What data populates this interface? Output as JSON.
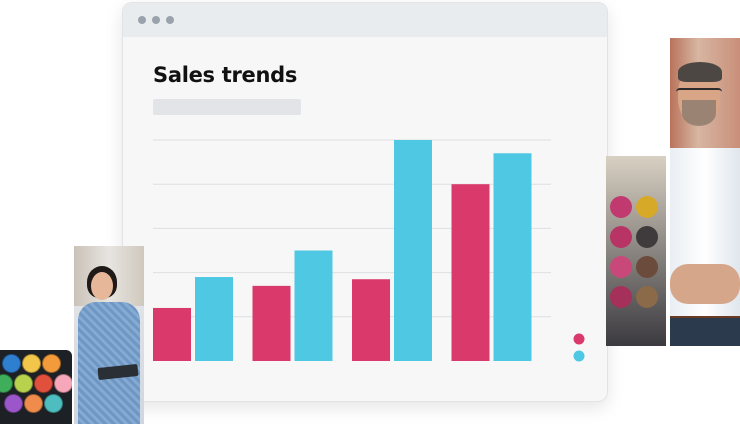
{
  "window": {
    "title_dots": [
      "close",
      "minimize",
      "maximize"
    ]
  },
  "chart_data": {
    "type": "bar",
    "title": "Sales trends",
    "subtitle": "",
    "categories": [
      "",
      "",
      "",
      ""
    ],
    "series": [
      {
        "values": [
          12,
          17,
          18.5,
          40
        ],
        "color": "#d93a6b"
      },
      {
        "values": [
          19,
          25,
          50,
          47
        ],
        "color": "#4ec8e3"
      }
    ],
    "ylim": [
      0,
      50
    ],
    "y_gridlines": [
      10,
      20,
      30,
      40,
      50
    ],
    "grid": true,
    "legend": "right",
    "legend_style": "dots"
  },
  "colors": {
    "series_pink": "#d93a6b",
    "series_cyan": "#4ec8e3",
    "window_bg": "#f7f7f7",
    "titlebar_bg": "#e9ecef"
  },
  "photos": [
    {
      "name": "eyeshadow-palette-photo"
    },
    {
      "name": "smiling-woman-with-tablet-photo"
    },
    {
      "name": "warehouse-rolls-photo"
    },
    {
      "name": "smiling-man-arms-crossed-photo"
    }
  ]
}
